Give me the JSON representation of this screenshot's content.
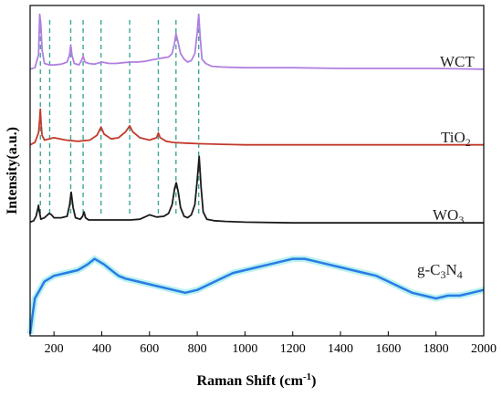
{
  "chart_data": {
    "type": "line",
    "title": "",
    "xlabel": "Raman Shift (cm",
    "xlabel_sup": "-1",
    "xlabel_end": ")",
    "ylabel": "Intensity(a.u.)",
    "xlim": [
      100,
      2000
    ],
    "x_ticks": [
      200,
      400,
      600,
      800,
      1000,
      1200,
      1400,
      1600,
      1800,
      2000
    ],
    "grid": false,
    "legend": "none (labels beside curves)",
    "reference_lines": {
      "style": "dashed",
      "color": "#3aa89a",
      "x": [
        143,
        182,
        270,
        322,
        397,
        517,
        637,
        711,
        806
      ]
    },
    "series": [
      {
        "name_main": "WCT",
        "name_sub": "",
        "color": "#b07fe0",
        "x": [
          100,
          120,
          135,
          140,
          145,
          150,
          160,
          180,
          200,
          230,
          255,
          265,
          270,
          275,
          285,
          305,
          315,
          322,
          330,
          345,
          370,
          400,
          430,
          460,
          490,
          520,
          550,
          580,
          610,
          640,
          660,
          680,
          695,
          705,
          711,
          718,
          730,
          745,
          760,
          775,
          790,
          800,
          806,
          812,
          820,
          835,
          860,
          900,
          1000,
          1200,
          1400,
          1600,
          1800,
          2000
        ],
        "y": [
          8,
          10,
          28,
          85,
          70,
          35,
          16,
          14,
          14,
          15,
          18,
          28,
          42,
          28,
          16,
          14,
          20,
          26,
          18,
          16,
          15,
          18,
          16,
          16,
          17,
          18,
          18,
          19,
          21,
          23,
          24,
          25,
          30,
          45,
          58,
          48,
          30,
          22,
          18,
          20,
          30,
          60,
          85,
          55,
          22,
          16,
          12,
          11,
          10,
          10,
          9,
          9,
          9,
          8
        ]
      },
      {
        "name_main": "TiO",
        "name_sub": "2",
        "color": "#c23a2a",
        "x": [
          100,
          120,
          135,
          140,
          143,
          146,
          150,
          160,
          200,
          250,
          300,
          350,
          380,
          397,
          410,
          440,
          470,
          500,
          517,
          530,
          560,
          600,
          630,
          637,
          645,
          670,
          700,
          750,
          800,
          900,
          1000,
          1200,
          1400,
          1600,
          1800,
          2000
        ],
        "y": [
          2,
          6,
          22,
          45,
          62,
          38,
          18,
          10,
          14,
          10,
          8,
          10,
          18,
          32,
          20,
          12,
          14,
          24,
          34,
          24,
          14,
          10,
          14,
          22,
          14,
          8,
          6,
          5,
          4,
          3,
          2,
          2,
          2,
          2,
          2,
          2
        ]
      },
      {
        "name_main": "WO",
        "name_sub": "3",
        "color": "#1a1a1a",
        "x": [
          100,
          115,
          125,
          132,
          135,
          138,
          145,
          160,
          180,
          190,
          200,
          230,
          255,
          265,
          272,
          280,
          290,
          310,
          320,
          326,
          332,
          345,
          380,
          420,
          470,
          520,
          560,
          600,
          630,
          660,
          680,
          695,
          705,
          712,
          720,
          730,
          745,
          760,
          775,
          790,
          800,
          808,
          816,
          825,
          840,
          870,
          920,
          1000,
          1200,
          1400,
          1600,
          1800,
          2000
        ],
        "y": [
          2,
          4,
          10,
          20,
          25,
          18,
          6,
          8,
          14,
          12,
          8,
          8,
          10,
          25,
          43,
          22,
          8,
          6,
          10,
          16,
          8,
          5,
          5,
          5,
          5,
          5,
          6,
          12,
          9,
          10,
          14,
          26,
          48,
          56,
          44,
          22,
          10,
          8,
          12,
          26,
          60,
          92,
          50,
          16,
          6,
          4,
          3,
          2,
          1,
          1,
          1,
          1,
          1
        ]
      },
      {
        "name_main": "g-C",
        "name_sub": "3",
        "name_main2": "N",
        "name_sub2": "4",
        "color": "#2a7be4",
        "x": [
          100,
          110,
          120,
          140,
          160,
          200,
          250,
          300,
          340,
          370,
          390,
          410,
          440,
          470,
          500,
          550,
          600,
          650,
          700,
          750,
          800,
          850,
          900,
          950,
          1000,
          1050,
          1100,
          1150,
          1200,
          1250,
          1300,
          1350,
          1400,
          1450,
          1500,
          1550,
          1600,
          1650,
          1700,
          1750,
          1800,
          1850,
          1900,
          1950,
          2000
        ],
        "y": [
          -5,
          8,
          20,
          26,
          32,
          36,
          38,
          40,
          44,
          48,
          46,
          44,
          40,
          36,
          34,
          32,
          30,
          28,
          26,
          24,
          26,
          30,
          34,
          38,
          40,
          42,
          44,
          46,
          48,
          48,
          46,
          44,
          42,
          40,
          38,
          36,
          32,
          28,
          24,
          22,
          20,
          22,
          22,
          24,
          26
        ]
      }
    ]
  }
}
